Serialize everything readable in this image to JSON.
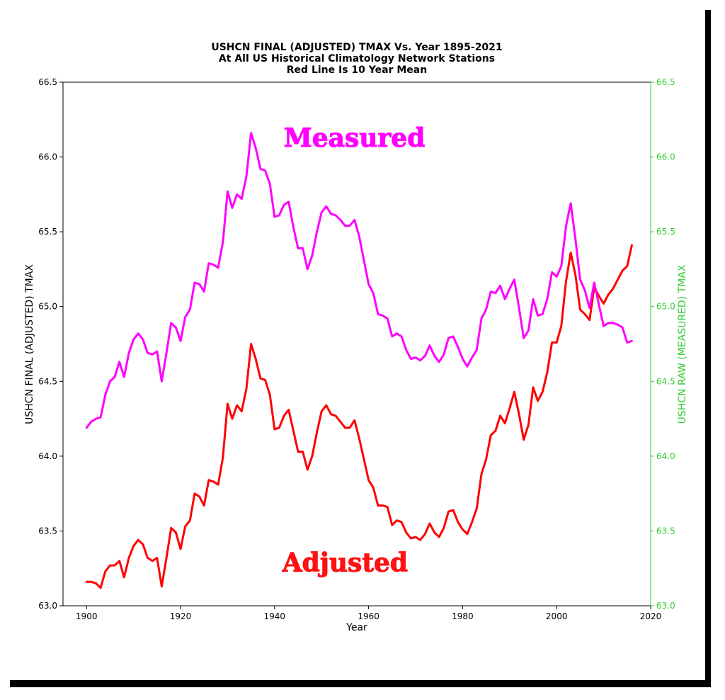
{
  "chart_data": {
    "type": "line",
    "title_lines": [
      "USHCN FINAL (ADJUSTED) TMAX Vs. Year 1895-2021",
      "At All US Historical Climatology Network Stations",
      "Red Line Is 10 Year Mean"
    ],
    "xlabel": "Year",
    "ylabel_left": "USHCN FINAL (ADJUSTED) TMAX",
    "ylabel_right": "USHCN RAW (MEASURED) TMAX",
    "xlim": [
      1895,
      2020
    ],
    "ylim_left": [
      63.0,
      66.5
    ],
    "ylim_right": [
      63.0,
      66.5
    ],
    "x_ticks": [
      "1900",
      "1920",
      "1940",
      "1960",
      "1980",
      "2000",
      "2020"
    ],
    "x_tick_values": [
      1900,
      1920,
      1940,
      1960,
      1980,
      2000,
      2020
    ],
    "y_ticks": [
      "63.0",
      "63.5",
      "64.0",
      "64.5",
      "65.0",
      "65.5",
      "66.0",
      "66.5"
    ],
    "y_tick_values": [
      63.0,
      63.5,
      64.0,
      64.5,
      65.0,
      65.5,
      66.0,
      66.5
    ],
    "grid": false,
    "annotations": [
      {
        "text": "Measured",
        "color": "#ff00ff",
        "anchor_x": 1957,
        "anchor_y": 66.07
      },
      {
        "text": "Adjusted",
        "color": "#ff1111",
        "anchor_x": 1955,
        "anchor_y": 63.23
      }
    ],
    "colors": {
      "adjusted": "#ff0000",
      "measured": "#ff00ff",
      "right_axis": "#33cc33"
    },
    "series": [
      {
        "axis": "left",
        "color": "#ff0000",
        "x": [
          1900,
          1901,
          1902,
          1903,
          1904,
          1905,
          1906,
          1907,
          1908,
          1909,
          1910,
          1911,
          1912,
          1913,
          1914,
          1915,
          1916,
          1917,
          1918,
          1919,
          1920,
          1921,
          1922,
          1923,
          1924,
          1925,
          1926,
          1927,
          1928,
          1929,
          1930,
          1931,
          1932,
          1933,
          1934,
          1935,
          1936,
          1937,
          1938,
          1939,
          1940,
          1941,
          1942,
          1943,
          1944,
          1945,
          1946,
          1947,
          1948,
          1949,
          1950,
          1951,
          1952,
          1953,
          1954,
          1955,
          1956,
          1957,
          1958,
          1959,
          1960,
          1961,
          1962,
          1963,
          1964,
          1965,
          1966,
          1967,
          1968,
          1969,
          1970,
          1971,
          1972,
          1973,
          1974,
          1975,
          1976,
          1977,
          1978,
          1979,
          1980,
          1981,
          1982,
          1983,
          1984,
          1985,
          1986,
          1987,
          1988,
          1989,
          1990,
          1991,
          1992,
          1993,
          1994,
          1995,
          1996,
          1997,
          1998,
          1999,
          2000,
          2001,
          2002,
          2003,
          2004,
          2005,
          2006,
          2007,
          2008,
          2009,
          2010,
          2011,
          2012,
          2013,
          2014,
          2015,
          2016
        ],
        "values": [
          63.16,
          63.16,
          63.15,
          63.12,
          63.23,
          63.27,
          63.27,
          63.3,
          63.19,
          63.32,
          63.4,
          63.44,
          63.41,
          63.32,
          63.3,
          63.32,
          63.13,
          63.32,
          63.52,
          63.49,
          63.38,
          63.53,
          63.57,
          63.75,
          63.73,
          63.67,
          63.84,
          63.83,
          63.81,
          63.99,
          64.35,
          64.25,
          64.34,
          64.3,
          64.45,
          64.75,
          64.65,
          64.52,
          64.51,
          64.41,
          64.18,
          64.19,
          64.27,
          64.31,
          64.17,
          64.03,
          64.03,
          63.91,
          64.0,
          64.16,
          64.3,
          64.34,
          64.28,
          64.27,
          64.23,
          64.19,
          64.19,
          64.24,
          64.12,
          63.98,
          63.84,
          63.79,
          63.67,
          63.67,
          63.66,
          63.54,
          63.57,
          63.56,
          63.49,
          63.45,
          63.46,
          63.44,
          63.48,
          63.55,
          63.49,
          63.46,
          63.52,
          63.63,
          63.64,
          63.56,
          63.51,
          63.48,
          63.56,
          63.65,
          63.88,
          63.98,
          64.14,
          64.17,
          64.27,
          64.22,
          64.32,
          64.43,
          64.28,
          64.11,
          64.21,
          64.46,
          64.37,
          64.43,
          64.56,
          64.76,
          64.76,
          64.87,
          65.17,
          65.36,
          65.21,
          64.98,
          64.95,
          64.91,
          65.13,
          65.07,
          65.02,
          65.08,
          65.12,
          65.18,
          65.24,
          65.27,
          65.41
        ]
      },
      {
        "axis": "right",
        "color": "#ff00ff",
        "x": [
          1900,
          1901,
          1902,
          1903,
          1904,
          1905,
          1906,
          1907,
          1908,
          1909,
          1910,
          1911,
          1912,
          1913,
          1914,
          1915,
          1916,
          1917,
          1918,
          1919,
          1920,
          1921,
          1922,
          1923,
          1924,
          1925,
          1926,
          1927,
          1928,
          1929,
          1930,
          1931,
          1932,
          1933,
          1934,
          1935,
          1936,
          1937,
          1938,
          1939,
          1940,
          1941,
          1942,
          1943,
          1944,
          1945,
          1946,
          1947,
          1948,
          1949,
          1950,
          1951,
          1952,
          1953,
          1954,
          1955,
          1956,
          1957,
          1958,
          1959,
          1960,
          1961,
          1962,
          1963,
          1964,
          1965,
          1966,
          1967,
          1968,
          1969,
          1970,
          1971,
          1972,
          1973,
          1974,
          1975,
          1976,
          1977,
          1978,
          1979,
          1980,
          1981,
          1982,
          1983,
          1984,
          1985,
          1986,
          1987,
          1988,
          1989,
          1990,
          1991,
          1992,
          1993,
          1994,
          1995,
          1996,
          1997,
          1998,
          1999,
          2000,
          2001,
          2002,
          2003,
          2004,
          2005,
          2006,
          2007,
          2008,
          2009,
          2010,
          2011,
          2012,
          2013,
          2014,
          2015,
          2016
        ],
        "values": [
          64.19,
          64.23,
          64.25,
          64.26,
          64.41,
          64.5,
          64.53,
          64.63,
          64.53,
          64.69,
          64.78,
          64.82,
          64.78,
          64.69,
          64.68,
          64.7,
          64.5,
          64.69,
          64.89,
          64.86,
          64.77,
          64.93,
          64.98,
          65.16,
          65.15,
          65.1,
          65.29,
          65.28,
          65.26,
          65.43,
          65.77,
          65.66,
          65.75,
          65.72,
          65.87,
          66.16,
          66.06,
          65.92,
          65.91,
          65.82,
          65.6,
          65.61,
          65.68,
          65.7,
          65.53,
          65.39,
          65.39,
          65.25,
          65.34,
          65.5,
          65.63,
          65.67,
          65.62,
          65.61,
          65.58,
          65.54,
          65.54,
          65.58,
          65.47,
          65.31,
          65.15,
          65.09,
          64.95,
          64.94,
          64.92,
          64.8,
          64.82,
          64.8,
          64.71,
          64.65,
          64.66,
          64.64,
          64.67,
          64.74,
          64.67,
          64.63,
          64.68,
          64.79,
          64.8,
          64.73,
          64.65,
          64.6,
          64.66,
          64.71,
          64.92,
          64.98,
          65.1,
          65.09,
          65.14,
          65.05,
          65.12,
          65.18,
          64.99,
          64.79,
          64.84,
          65.05,
          64.94,
          64.95,
          65.05,
          65.23,
          65.2,
          65.27,
          65.54,
          65.69,
          65.45,
          65.18,
          65.11,
          64.99,
          65.16,
          65.01,
          64.87,
          64.89,
          64.89,
          64.88,
          64.86,
          64.76,
          64.77
        ]
      }
    ]
  }
}
